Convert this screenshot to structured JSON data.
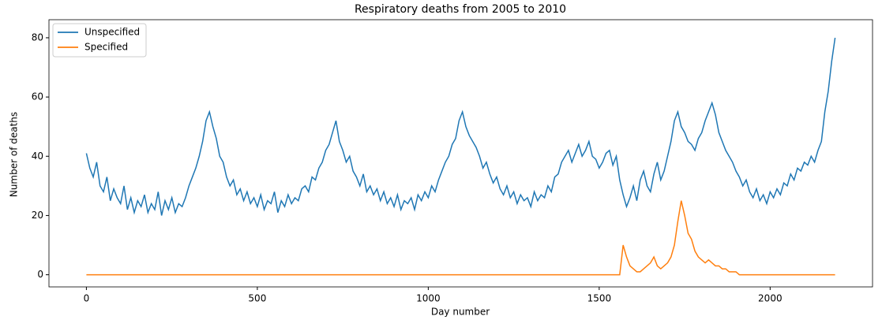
{
  "chart_data": {
    "type": "line",
    "title": "Respiratory deaths from 2005 to 2010",
    "x_label": "Day number",
    "y_label": "Number of deaths",
    "x": [
      0,
      10,
      20,
      30,
      40,
      50,
      60,
      70,
      80,
      90,
      100,
      110,
      120,
      130,
      140,
      150,
      160,
      170,
      180,
      190,
      200,
      210,
      220,
      230,
      240,
      250,
      260,
      270,
      280,
      290,
      300,
      310,
      320,
      330,
      340,
      350,
      360,
      370,
      380,
      390,
      400,
      410,
      420,
      430,
      440,
      450,
      460,
      470,
      480,
      490,
      500,
      510,
      520,
      530,
      540,
      550,
      560,
      570,
      580,
      590,
      600,
      610,
      620,
      630,
      640,
      650,
      660,
      670,
      680,
      690,
      700,
      710,
      720,
      730,
      740,
      750,
      760,
      770,
      780,
      790,
      800,
      810,
      820,
      830,
      840,
      850,
      860,
      870,
      880,
      890,
      900,
      910,
      920,
      930,
      940,
      950,
      960,
      970,
      980,
      990,
      1000,
      1010,
      1020,
      1030,
      1040,
      1050,
      1060,
      1070,
      1080,
      1090,
      1100,
      1110,
      1120,
      1130,
      1140,
      1150,
      1160,
      1170,
      1180,
      1190,
      1200,
      1210,
      1220,
      1230,
      1240,
      1250,
      1260,
      1270,
      1280,
      1290,
      1300,
      1310,
      1320,
      1330,
      1340,
      1350,
      1360,
      1370,
      1380,
      1390,
      1400,
      1410,
      1420,
      1430,
      1440,
      1450,
      1460,
      1470,
      1480,
      1490,
      1500,
      1510,
      1520,
      1530,
      1540,
      1550,
      1560,
      1570,
      1580,
      1590,
      1600,
      1610,
      1620,
      1630,
      1640,
      1650,
      1660,
      1670,
      1680,
      1690,
      1700,
      1710,
      1720,
      1730,
      1740,
      1750,
      1760,
      1770,
      1780,
      1790,
      1800,
      1810,
      1820,
      1830,
      1840,
      1850,
      1860,
      1870,
      1880,
      1890,
      1900,
      1910,
      1920,
      1930,
      1940,
      1950,
      1960,
      1970,
      1980,
      1990,
      2000,
      2010,
      2020,
      2030,
      2040,
      2050,
      2060,
      2070,
      2080,
      2090,
      2100,
      2110,
      2120,
      2130,
      2140,
      2150,
      2160,
      2170,
      2180,
      2190
    ],
    "series": [
      {
        "name": "Unspecified",
        "color": "#1f77b4",
        "values": [
          41,
          36,
          33,
          38,
          30,
          28,
          33,
          25,
          29,
          26,
          24,
          30,
          22,
          26,
          21,
          25,
          23,
          27,
          21,
          24,
          22,
          28,
          20,
          25,
          22,
          26,
          21,
          24,
          23,
          26,
          30,
          33,
          36,
          40,
          45,
          52,
          55,
          50,
          46,
          40,
          38,
          33,
          30,
          32,
          27,
          29,
          25,
          28,
          24,
          26,
          23,
          27,
          22,
          25,
          24,
          28,
          21,
          25,
          23,
          27,
          24,
          26,
          25,
          29,
          30,
          28,
          33,
          32,
          36,
          38,
          42,
          44,
          48,
          52,
          45,
          42,
          38,
          40,
          35,
          33,
          30,
          34,
          28,
          30,
          27,
          29,
          25,
          28,
          24,
          26,
          23,
          27,
          22,
          25,
          24,
          26,
          22,
          27,
          25,
          28,
          26,
          30,
          28,
          32,
          35,
          38,
          40,
          44,
          46,
          52,
          55,
          50,
          47,
          45,
          43,
          40,
          36,
          38,
          34,
          31,
          33,
          29,
          27,
          30,
          26,
          28,
          24,
          27,
          25,
          26,
          23,
          28,
          25,
          27,
          26,
          30,
          28,
          33,
          34,
          38,
          40,
          42,
          38,
          41,
          44,
          40,
          42,
          45,
          40,
          39,
          36,
          38,
          41,
          42,
          37,
          40,
          32,
          27,
          23,
          26,
          30,
          25,
          32,
          35,
          30,
          28,
          34,
          38,
          32,
          35,
          40,
          45,
          52,
          55,
          50,
          48,
          45,
          44,
          42,
          46,
          48,
          52,
          55,
          58,
          54,
          48,
          45,
          42,
          40,
          38,
          35,
          33,
          30,
          32,
          28,
          26,
          29,
          25,
          27,
          24,
          28,
          26,
          29,
          27,
          31,
          30,
          34,
          32,
          36,
          35,
          38,
          37,
          40,
          38,
          42,
          45,
          55,
          62,
          72,
          80
        ]
      },
      {
        "name": "Specified",
        "color": "#ff7f0e",
        "values": [
          0,
          0,
          0,
          0,
          0,
          0,
          0,
          0,
          0,
          0,
          0,
          0,
          0,
          0,
          0,
          0,
          0,
          0,
          0,
          0,
          0,
          0,
          0,
          0,
          0,
          0,
          0,
          0,
          0,
          0,
          0,
          0,
          0,
          0,
          0,
          0,
          0,
          0,
          0,
          0,
          0,
          0,
          0,
          0,
          0,
          0,
          0,
          0,
          0,
          0,
          0,
          0,
          0,
          0,
          0,
          0,
          0,
          0,
          0,
          0,
          0,
          0,
          0,
          0,
          0,
          0,
          0,
          0,
          0,
          0,
          0,
          0,
          0,
          0,
          0,
          0,
          0,
          0,
          0,
          0,
          0,
          0,
          0,
          0,
          0,
          0,
          0,
          0,
          0,
          0,
          0,
          0,
          0,
          0,
          0,
          0,
          0,
          0,
          0,
          0,
          0,
          0,
          0,
          0,
          0,
          0,
          0,
          0,
          0,
          0,
          0,
          0,
          0,
          0,
          0,
          0,
          0,
          0,
          0,
          0,
          0,
          0,
          0,
          0,
          0,
          0,
          0,
          0,
          0,
          0,
          0,
          0,
          0,
          0,
          0,
          0,
          0,
          0,
          0,
          0,
          0,
          0,
          0,
          0,
          0,
          0,
          0,
          0,
          0,
          0,
          0,
          0,
          0,
          0,
          0,
          0,
          0,
          10,
          6,
          3,
          2,
          1,
          1,
          2,
          3,
          4,
          6,
          3,
          2,
          3,
          4,
          6,
          10,
          18,
          25,
          20,
          14,
          12,
          8,
          6,
          5,
          4,
          5,
          4,
          3,
          3,
          2,
          2,
          1,
          1,
          1,
          0,
          0,
          0,
          0,
          0,
          0,
          0,
          0,
          0,
          0,
          0,
          0,
          0,
          0,
          0,
          0,
          0,
          0,
          0,
          0,
          0,
          0,
          0,
          0,
          0,
          0,
          0,
          0,
          0
        ]
      }
    ],
    "xlim": [
      -109.5,
      2299.5
    ],
    "xticks": [
      0,
      500,
      1000,
      1500,
      2000
    ],
    "ylim": [
      -4.1,
      86.1
    ],
    "yticks": [
      0,
      20,
      40,
      60,
      80
    ],
    "legend": "upper left"
  }
}
